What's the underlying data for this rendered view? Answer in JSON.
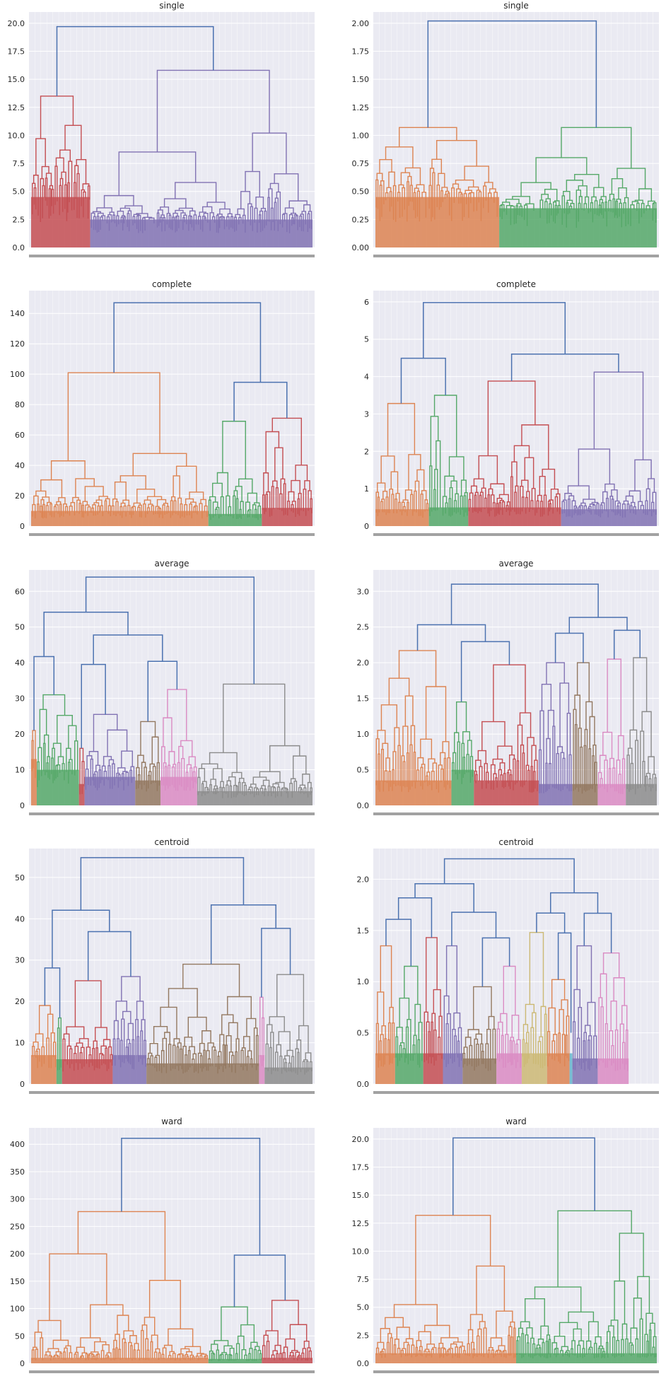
{
  "palette": {
    "blue": "#4c72b0",
    "orange": "#dd8452",
    "green": "#55a868",
    "red": "#c44e52",
    "purple": "#8172b3",
    "brown": "#937860",
    "pink": "#da8bc3",
    "gray": "#8c8c8c",
    "olive": "#ccb974",
    "cyan": "#64b5cd"
  },
  "chart_data": [
    {
      "type": "dendrogram",
      "title": "single",
      "ylim": [
        0,
        21
      ],
      "yticks": [
        "0.0",
        "2.5",
        "5.0",
        "7.5",
        "10.0",
        "12.5",
        "15.0",
        "17.5",
        "20.0"
      ],
      "grid": true,
      "root_height": 19.7,
      "clusters": [
        {
          "color": "red",
          "share": 0.21,
          "height": 13.5,
          "fill_to": 4.5
        },
        {
          "color": "purple",
          "share": 0.79,
          "height": 15.8,
          "fill_to": 2.5
        }
      ]
    },
    {
      "type": "dendrogram",
      "title": "single",
      "ylim": [
        0,
        2.1
      ],
      "yticks": [
        "0.00",
        "0.25",
        "0.50",
        "0.75",
        "1.00",
        "1.25",
        "1.50",
        "1.75",
        "2.00"
      ],
      "grid": true,
      "root_height": 2.02,
      "clusters": [
        {
          "color": "orange",
          "share": 0.44,
          "height": 1.07,
          "fill_to": 0.45
        },
        {
          "color": "green",
          "share": 0.56,
          "height": 1.07,
          "fill_to": 0.35
        }
      ]
    },
    {
      "type": "dendrogram",
      "title": "complete",
      "ylim": [
        0,
        155
      ],
      "yticks": [
        "0",
        "20",
        "40",
        "60",
        "80",
        "100",
        "120",
        "140"
      ],
      "grid": true,
      "root_height": 147,
      "clusters": [
        {
          "color": "orange",
          "share": 0.63,
          "height": 101,
          "fill_to": 10
        },
        {
          "color": "green",
          "share": 0.19,
          "height": 69,
          "fill_to": 8
        },
        {
          "color": "red",
          "share": 0.18,
          "height": 71,
          "fill_to": 12
        }
      ]
    },
    {
      "type": "dendrogram",
      "title": "complete",
      "ylim": [
        0,
        6.3
      ],
      "yticks": [
        "0",
        "1",
        "2",
        "3",
        "4",
        "5",
        "6"
      ],
      "grid": true,
      "root_height": 5.98,
      "clusters": [
        {
          "color": "orange",
          "share": 0.19,
          "height": 3.28,
          "fill_to": 0.45
        },
        {
          "color": "green",
          "share": 0.14,
          "height": 3.5,
          "fill_to": 0.5
        },
        {
          "color": "red",
          "share": 0.33,
          "height": 3.88,
          "fill_to": 0.5
        },
        {
          "color": "purple",
          "share": 0.34,
          "height": 4.12,
          "fill_to": 0.45
        }
      ]
    },
    {
      "type": "dendrogram",
      "title": "average",
      "ylim": [
        0,
        66
      ],
      "yticks": [
        "0",
        "10",
        "20",
        "30",
        "40",
        "50",
        "60"
      ],
      "grid": true,
      "root_height": 64,
      "clusters": [
        {
          "color": "orange",
          "share": 0.02,
          "height": 21,
          "fill_to": 13
        },
        {
          "color": "green",
          "share": 0.15,
          "height": 31,
          "fill_to": 10
        },
        {
          "color": "red",
          "share": 0.02,
          "height": 16,
          "fill_to": 6
        },
        {
          "color": "purple",
          "share": 0.18,
          "height": 25.5,
          "fill_to": 8
        },
        {
          "color": "brown",
          "share": 0.09,
          "height": 23.5,
          "fill_to": 7
        },
        {
          "color": "pink",
          "share": 0.13,
          "height": 32.5,
          "fill_to": 8
        },
        {
          "color": "gray",
          "share": 0.41,
          "height": 34,
          "fill_to": 4
        }
      ]
    },
    {
      "type": "dendrogram",
      "title": "average",
      "ylim": [
        0,
        3.3
      ],
      "yticks": [
        "0.0",
        "0.5",
        "1.0",
        "1.5",
        "2.0",
        "2.5",
        "3.0"
      ],
      "grid": true,
      "root_height": 3.1,
      "clusters": [
        {
          "color": "orange",
          "share": 0.27,
          "height": 2.17,
          "fill_to": 0.35
        },
        {
          "color": "green",
          "share": 0.08,
          "height": 1.45,
          "fill_to": 0.5
        },
        {
          "color": "red",
          "share": 0.23,
          "height": 1.97,
          "fill_to": 0.35
        },
        {
          "color": "purple",
          "share": 0.12,
          "height": 2.0,
          "fill_to": 0.3
        },
        {
          "color": "brown",
          "share": 0.09,
          "height": 2.0,
          "fill_to": 0.3
        },
        {
          "color": "pink",
          "share": 0.1,
          "height": 2.05,
          "fill_to": 0.3
        },
        {
          "color": "gray",
          "share": 0.11,
          "height": 2.07,
          "fill_to": 0.3
        }
      ]
    },
    {
      "type": "dendrogram",
      "title": "centroid",
      "ylim": [
        0,
        57
      ],
      "yticks": [
        "0",
        "10",
        "20",
        "30",
        "40",
        "50"
      ],
      "grid": true,
      "root_height": 54.8,
      "clusters": [
        {
          "color": "orange",
          "share": 0.09,
          "height": 19,
          "fill_to": 7
        },
        {
          "color": "green",
          "share": 0.02,
          "height": 16,
          "fill_to": 6
        },
        {
          "color": "red",
          "share": 0.18,
          "height": 25,
          "fill_to": 6
        },
        {
          "color": "purple",
          "share": 0.12,
          "height": 26,
          "fill_to": 7
        },
        {
          "color": "brown",
          "share": 0.4,
          "height": 29,
          "fill_to": 5
        },
        {
          "color": "pink",
          "share": 0.02,
          "height": 21,
          "fill_to": 7
        },
        {
          "color": "gray",
          "share": 0.17,
          "height": 26.5,
          "fill_to": 4
        }
      ]
    },
    {
      "type": "dendrogram",
      "title": "centroid",
      "ylim": [
        0,
        2.3
      ],
      "yticks": [
        "0.0",
        "0.5",
        "1.0",
        "1.5",
        "2.0"
      ],
      "grid": true,
      "root_height": 2.2,
      "clusters": [
        {
          "color": "orange",
          "share": 0.07,
          "height": 1.35,
          "fill_to": 0.3
        },
        {
          "color": "green",
          "share": 0.1,
          "height": 1.15,
          "fill_to": 0.3
        },
        {
          "color": "red",
          "share": 0.07,
          "height": 1.43,
          "fill_to": 0.3
        },
        {
          "color": "purple",
          "share": 0.07,
          "height": 1.35,
          "fill_to": 0.3
        },
        {
          "color": "brown",
          "share": 0.12,
          "height": 0.95,
          "fill_to": 0.25
        },
        {
          "color": "pink",
          "share": 0.09,
          "height": 1.15,
          "fill_to": 0.3
        },
        {
          "color": "olive",
          "share": 0.09,
          "height": 1.48,
          "fill_to": 0.3
        },
        {
          "color": "orange",
          "share": 0.08,
          "height": 1.02,
          "fill_to": 0.3
        },
        {
          "color": "cyan",
          "share": 0.01,
          "height": 0.5,
          "fill_to": 0.3
        },
        {
          "color": "purple",
          "share": 0.09,
          "height": 1.35,
          "fill_to": 0.25
        },
        {
          "color": "pink",
          "share": 0.11,
          "height": 1.28,
          "fill_to": 0.25
        }
      ]
    },
    {
      "type": "dendrogram",
      "title": "ward",
      "ylim": [
        0,
        430
      ],
      "yticks": [
        "0",
        "50",
        "100",
        "150",
        "200",
        "250",
        "300",
        "350",
        "400"
      ],
      "grid": true,
      "root_height": 411,
      "clusters": [
        {
          "color": "orange",
          "share": 0.63,
          "height": 277,
          "fill_to": 10
        },
        {
          "color": "green",
          "share": 0.19,
          "height": 103,
          "fill_to": 8
        },
        {
          "color": "red",
          "share": 0.18,
          "height": 115,
          "fill_to": 10
        }
      ]
    },
    {
      "type": "dendrogram",
      "title": "ward",
      "ylim": [
        0,
        21
      ],
      "yticks": [
        "0.0",
        "2.5",
        "5.0",
        "7.5",
        "10.0",
        "12.5",
        "15.0",
        "17.5",
        "20.0"
      ],
      "grid": true,
      "root_height": 20.1,
      "clusters": [
        {
          "color": "orange",
          "share": 0.5,
          "height": 13.2,
          "fill_to": 0.9
        },
        {
          "color": "green",
          "share": 0.5,
          "height": 13.6,
          "fill_to": 0.9
        }
      ]
    }
  ]
}
